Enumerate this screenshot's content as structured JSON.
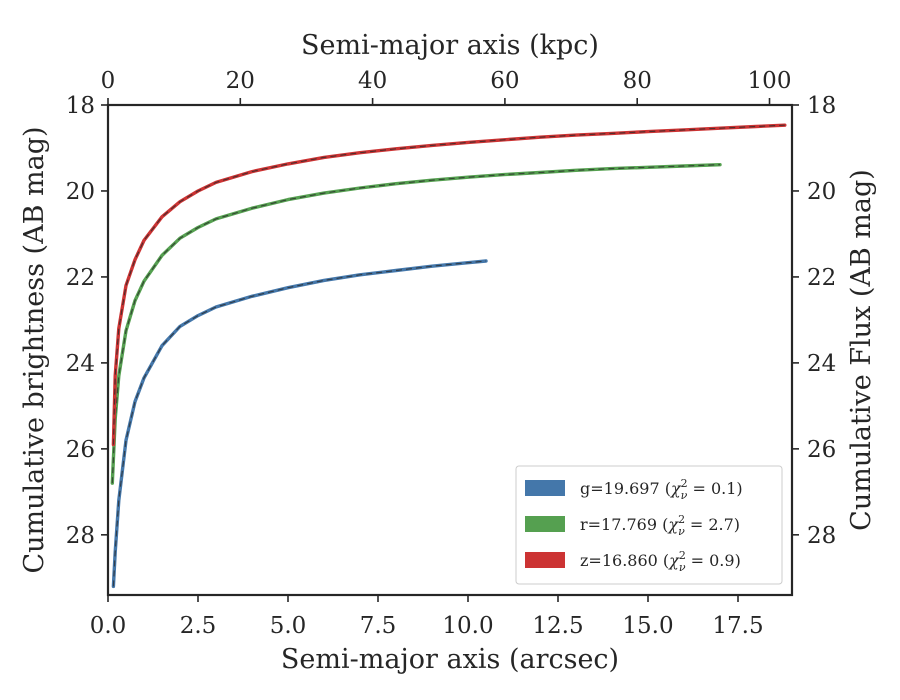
{
  "chart_data": {
    "type": "line",
    "xlabel": "Semi-major axis (arcsec)",
    "ylabel": "Cumulative brightness (AB mag)",
    "x2label": "Semi-major axis (kpc)",
    "y2label": "Cumulative Flux (AB mag)",
    "xlim": [
      0,
      19
    ],
    "ylim": [
      29.4,
      18
    ],
    "x2lim": [
      0,
      103.4
    ],
    "y_inverted": true,
    "xticks": [
      "0.0",
      "2.5",
      "5.0",
      "7.5",
      "10.0",
      "12.5",
      "15.0",
      "17.5"
    ],
    "yticks": [
      "18",
      "20",
      "22",
      "24",
      "26",
      "28"
    ],
    "x2ticks": [
      "0",
      "20",
      "40",
      "60",
      "80",
      "100"
    ],
    "y2ticks": [
      "18",
      "20",
      "22",
      "24",
      "26",
      "28"
    ],
    "grid": false,
    "legend_position": "lower right",
    "series": [
      {
        "name": "g=19.697 (χ²ᵥ = 0.1)",
        "legend": {
          "prefix": "g=19.697 (",
          "chi": "χ",
          "sup": "2",
          "sub": "ν",
          "suffix": " = 0.1)"
        },
        "color": "#4477aa",
        "x": [
          0.15,
          0.2,
          0.3,
          0.5,
          0.75,
          1.0,
          1.5,
          2.0,
          2.5,
          3.0,
          4.0,
          5.0,
          6.0,
          7.0,
          8.0,
          9.0,
          10.0,
          10.5
        ],
        "y": [
          29.2,
          28.4,
          27.2,
          25.8,
          24.9,
          24.35,
          23.6,
          23.15,
          22.9,
          22.7,
          22.45,
          22.25,
          22.08,
          21.95,
          21.85,
          21.75,
          21.67,
          21.63
        ]
      },
      {
        "name": "r=17.769 (χ²ᵥ = 2.7)",
        "legend": {
          "prefix": "r=17.769 (",
          "chi": "χ",
          "sup": "2",
          "sub": "ν",
          "suffix": " = 2.7)"
        },
        "color": "#55a050",
        "x": [
          0.12,
          0.2,
          0.3,
          0.5,
          0.75,
          1.0,
          1.5,
          2.0,
          2.5,
          3.0,
          4.0,
          5.0,
          6.0,
          7.0,
          8.0,
          9.0,
          10.0,
          11.0,
          12.0,
          13.0,
          14.0,
          15.0,
          16.0,
          17.0
        ],
        "y": [
          26.8,
          25.3,
          24.3,
          23.25,
          22.55,
          22.1,
          21.5,
          21.1,
          20.85,
          20.65,
          20.4,
          20.2,
          20.05,
          19.93,
          19.83,
          19.75,
          19.68,
          19.62,
          19.57,
          19.52,
          19.48,
          19.45,
          19.42,
          19.39
        ]
      },
      {
        "name": "z=16.860 (χ²ᵥ = 0.9)",
        "legend": {
          "prefix": "z=16.860 (",
          "chi": "χ",
          "sup": "2",
          "sub": "ν",
          "suffix": " = 0.9)"
        },
        "color": "#cc3333",
        "x": [
          0.15,
          0.2,
          0.3,
          0.5,
          0.75,
          1.0,
          1.5,
          2.0,
          2.5,
          3.0,
          4.0,
          5.0,
          6.0,
          7.0,
          8.0,
          9.0,
          10.0,
          11.0,
          12.0,
          13.0,
          14.0,
          15.0,
          16.0,
          17.0,
          18.0,
          18.8
        ],
        "y": [
          25.9,
          24.3,
          23.2,
          22.2,
          21.6,
          21.15,
          20.6,
          20.25,
          20.0,
          19.8,
          19.55,
          19.37,
          19.22,
          19.11,
          19.02,
          18.94,
          18.87,
          18.81,
          18.75,
          18.7,
          18.66,
          18.62,
          18.58,
          18.54,
          18.5,
          18.47
        ]
      }
    ]
  }
}
